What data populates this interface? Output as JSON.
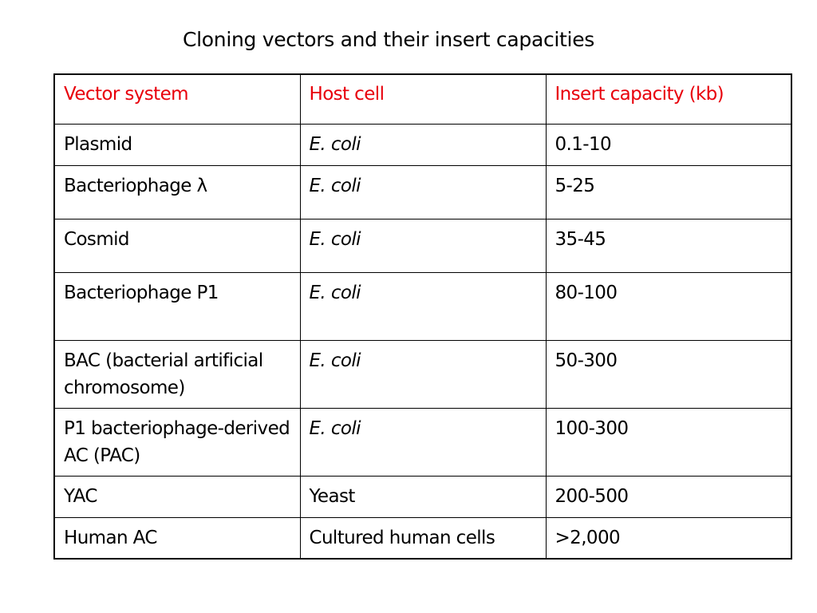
{
  "slide": {
    "title": "Cloning vectors and their insert capacities"
  },
  "table": {
    "headers": [
      "Vector system",
      "Host cell",
      "Insert capacity (kb)"
    ],
    "rows": [
      {
        "vector": "Plasmid",
        "host": "E. coli",
        "capacity": "0.1-10"
      },
      {
        "vector": "Bacteriophage λ",
        "host": "E. coli",
        "capacity": "5-25"
      },
      {
        "vector": "Cosmid",
        "host": "E. coli",
        "capacity": "35-45"
      },
      {
        "vector": "Bacteriophage P1",
        "host": "E. coli",
        "capacity": "80-100"
      },
      {
        "vector": "BAC (bacterial artificial chromosome)",
        "host": "E. coli",
        "capacity": "50-300"
      },
      {
        "vector": "P1 bacteriophage-derived AC (PAC)",
        "host": "E. coli",
        "capacity": "100-300"
      },
      {
        "vector": "YAC",
        "host": "Yeast",
        "capacity": "200-500"
      },
      {
        "vector": "Human AC",
        "host": "Cultured human cells",
        "capacity": ">2,000"
      }
    ]
  },
  "colors": {
    "header_text": "#e8000b",
    "body_text": "#000000",
    "border": "#000000",
    "background": "#ffffff"
  }
}
